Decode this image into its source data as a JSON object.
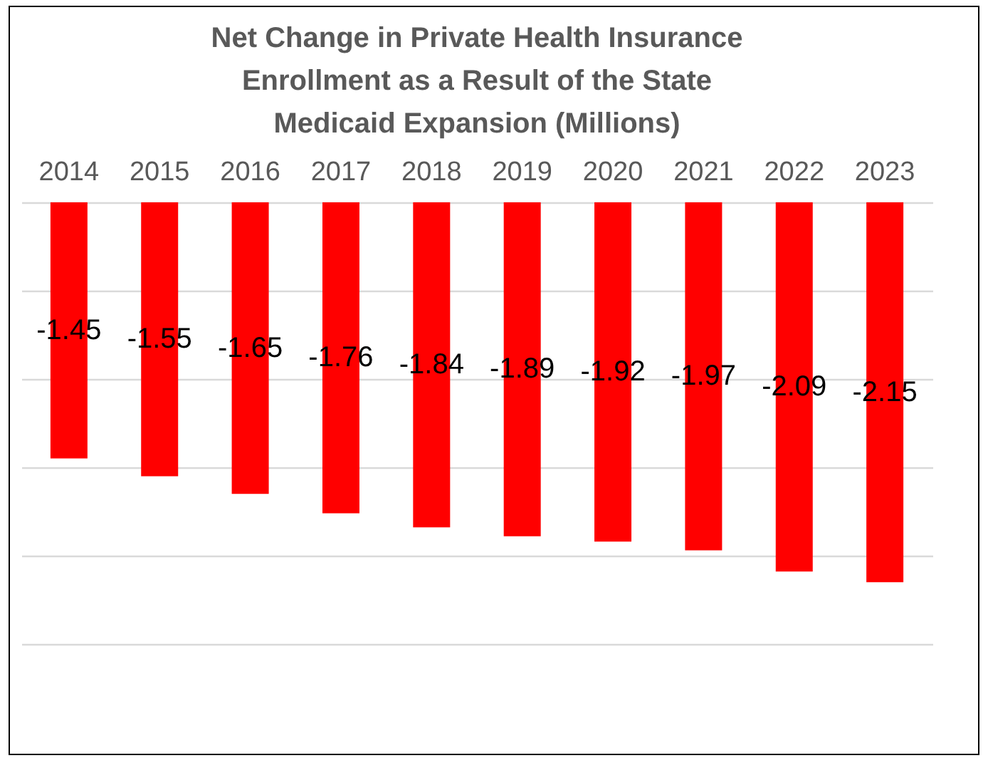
{
  "chart_data": {
    "type": "bar",
    "title": "Net Change in Private Health Insurance Enrollment as a Result of the State Medicaid Expansion (Millions)",
    "categories": [
      "2014",
      "2015",
      "2016",
      "2017",
      "2018",
      "2019",
      "2020",
      "2021",
      "2022",
      "2023"
    ],
    "values": [
      -1.45,
      -1.55,
      -1.65,
      -1.76,
      -1.84,
      -1.89,
      -1.92,
      -1.97,
      -2.09,
      -2.15
    ],
    "color": "#ff0000",
    "ylim": [
      -2.5,
      0
    ],
    "yticks": [
      {
        "value": 0,
        "label": null
      },
      {
        "value": -0.5,
        "label": null
      },
      {
        "value": -1,
        "label": null
      },
      {
        "value": -1.5,
        "label": null
      },
      {
        "value": -2,
        "label": null
      },
      {
        "value": -2.5,
        "label": null
      }
    ],
    "tick_labels": "x",
    "grid": "y",
    "data_labels": true
  }
}
